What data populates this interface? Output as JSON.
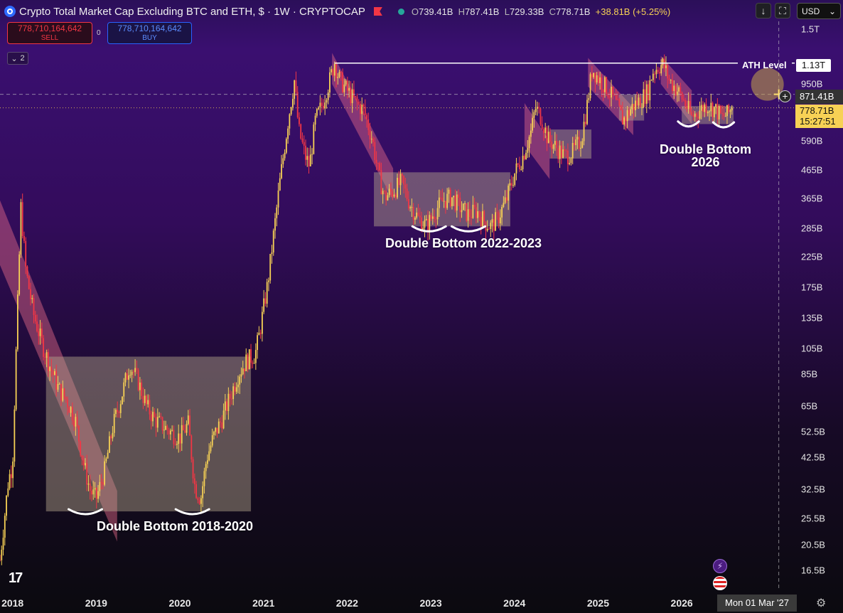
{
  "header": {
    "title": "Crypto Total Market Cap Excluding BTC and ETH, $ · 1W · CRYPTOCAP",
    "open": "739.41B",
    "high": "787.41B",
    "low": "729.33B",
    "close": "778.71B",
    "change": "+38.81B (+5.25%)",
    "open_prefix": "O",
    "high_prefix": "H",
    "low_prefix": "L",
    "close_prefix": "C"
  },
  "trade": {
    "sell_value": "778,710,164,642",
    "sell_label": "SELL",
    "buy_value": "778,710,164,642",
    "buy_label": "BUY",
    "spread": "0"
  },
  "indicators": {
    "collapsed_count": "2"
  },
  "toolbar": {
    "currency": "USD"
  },
  "price_axis": {
    "labels": [
      {
        "text": "1.5T",
        "v": 1500
      },
      {
        "text": "950B",
        "v": 950
      },
      {
        "text": "590B",
        "v": 590
      },
      {
        "text": "465B",
        "v": 465
      },
      {
        "text": "365B",
        "v": 365
      },
      {
        "text": "285B",
        "v": 285
      },
      {
        "text": "225B",
        "v": 225
      },
      {
        "text": "175B",
        "v": 175
      },
      {
        "text": "135B",
        "v": 135
      },
      {
        "text": "105B",
        "v": 105
      },
      {
        "text": "85B",
        "v": 85
      },
      {
        "text": "65B",
        "v": 65
      },
      {
        "text": "52.5B",
        "v": 52.5
      },
      {
        "text": "42.5B",
        "v": 42.5
      },
      {
        "text": "32.5B",
        "v": 32.5
      },
      {
        "text": "25.5B",
        "v": 25.5
      },
      {
        "text": "20.5B",
        "v": 20.5
      },
      {
        "text": "16.5B",
        "v": 16.5
      }
    ],
    "ath_label": "ATH Level",
    "ath_value": "1.13T",
    "crosshair_value": "871.41B",
    "current_value": "778.71B",
    "countdown": "15:27:51"
  },
  "time_axis": {
    "labels": [
      "2018",
      "2019",
      "2020",
      "2021",
      "2022",
      "2023",
      "2024",
      "2025",
      "2026"
    ],
    "crosshair_date": "Mon 01 Mar '27"
  },
  "annotations": {
    "db1": "Double Bottom 2018-2020",
    "db2": "Double Bottom 2022-2023",
    "db3_line1": "Double Bottom",
    "db3_line2": "2026"
  },
  "colors": {
    "up": "#f7d155",
    "down": "#f23645",
    "ath_line": "#ffffff",
    "channel": "#e66a8a",
    "range_box": "#b8a98f"
  },
  "chart_data": {
    "type": "candlestick",
    "title": "Crypto Total Market Cap Excluding BTC and ETH, $ · 1W · CRYPTOCAP",
    "y_scale": "log",
    "ylim": [
      14,
      1600
    ],
    "xlim": [
      2017.85,
      2027.35
    ],
    "ath_level": 1130,
    "crosshair": {
      "x": 2027.16,
      "y": 871.41
    },
    "last_close": 778.71,
    "price_path": [
      [
        2017.85,
        18
      ],
      [
        2017.95,
        35
      ],
      [
        2018.0,
        40
      ],
      [
        2018.05,
        120
      ],
      [
        2018.1,
        340
      ],
      [
        2018.16,
        200
      ],
      [
        2018.25,
        140
      ],
      [
        2018.35,
        110
      ],
      [
        2018.45,
        90
      ],
      [
        2018.55,
        75
      ],
      [
        2018.65,
        68
      ],
      [
        2018.75,
        58
      ],
      [
        2018.85,
        40
      ],
      [
        2018.93,
        32
      ],
      [
        2019.0,
        30
      ],
      [
        2019.1,
        38
      ],
      [
        2019.2,
        55
      ],
      [
        2019.3,
        70
      ],
      [
        2019.4,
        92
      ],
      [
        2019.5,
        80
      ],
      [
        2019.6,
        65
      ],
      [
        2019.7,
        58
      ],
      [
        2019.8,
        55
      ],
      [
        2019.9,
        52
      ],
      [
        2020.0,
        50
      ],
      [
        2020.1,
        56
      ],
      [
        2020.18,
        33
      ],
      [
        2020.25,
        30
      ],
      [
        2020.32,
        42
      ],
      [
        2020.4,
        50
      ],
      [
        2020.5,
        58
      ],
      [
        2020.6,
        70
      ],
      [
        2020.7,
        85
      ],
      [
        2020.8,
        95
      ],
      [
        2020.9,
        100
      ],
      [
        2020.95,
        118
      ],
      [
        2021.05,
        180
      ],
      [
        2021.12,
        270
      ],
      [
        2021.2,
        430
      ],
      [
        2021.3,
        720
      ],
      [
        2021.37,
        980
      ],
      [
        2021.42,
        650
      ],
      [
        2021.5,
        520
      ],
      [
        2021.55,
        480
      ],
      [
        2021.62,
        700
      ],
      [
        2021.7,
        800
      ],
      [
        2021.8,
        1000
      ],
      [
        2021.85,
        1140
      ],
      [
        2021.9,
        1000
      ],
      [
        2022.0,
        900
      ],
      [
        2022.1,
        820
      ],
      [
        2022.2,
        760
      ],
      [
        2022.3,
        600
      ],
      [
        2022.38,
        440
      ],
      [
        2022.45,
        370
      ],
      [
        2022.55,
        390
      ],
      [
        2022.65,
        420
      ],
      [
        2022.75,
        350
      ],
      [
        2022.85,
        310
      ],
      [
        2022.95,
        290
      ],
      [
        2023.05,
        330
      ],
      [
        2023.15,
        360
      ],
      [
        2023.25,
        370
      ],
      [
        2023.35,
        340
      ],
      [
        2023.45,
        320
      ],
      [
        2023.55,
        330
      ],
      [
        2023.65,
        300
      ],
      [
        2023.72,
        290
      ],
      [
        2023.8,
        310
      ],
      [
        2023.9,
        360
      ],
      [
        2024.0,
        450
      ],
      [
        2024.1,
        520
      ],
      [
        2024.2,
        640
      ],
      [
        2024.25,
        780
      ],
      [
        2024.32,
        720
      ],
      [
        2024.4,
        600
      ],
      [
        2024.5,
        560
      ],
      [
        2024.6,
        520
      ],
      [
        2024.7,
        540
      ],
      [
        2024.8,
        600
      ],
      [
        2024.87,
        800
      ],
      [
        2024.93,
        1080
      ],
      [
        2025.0,
        1000
      ],
      [
        2025.1,
        920
      ],
      [
        2025.2,
        820
      ],
      [
        2025.3,
        700
      ],
      [
        2025.4,
        780
      ],
      [
        2025.5,
        830
      ],
      [
        2025.6,
        900
      ],
      [
        2025.65,
        1050
      ],
      [
        2025.72,
        1100
      ],
      [
        2025.78,
        1120
      ],
      [
        2025.85,
        980
      ],
      [
        2025.95,
        900
      ],
      [
        2026.05,
        800
      ],
      [
        2026.12,
        720
      ],
      [
        2026.2,
        760
      ],
      [
        2026.3,
        800
      ],
      [
        2026.4,
        770
      ],
      [
        2026.48,
        720
      ],
      [
        2026.55,
        740
      ],
      [
        2026.6,
        779
      ]
    ],
    "channels": [
      {
        "x1": 2017.85,
        "x2": 2019.25,
        "top_start": 360,
        "top_end": 32,
        "bottom_start": 210,
        "bottom_end": 21
      },
      {
        "x1": 2021.82,
        "x2": 2022.55,
        "top_start": 1230,
        "top_end": 470,
        "bottom_start": 950,
        "bottom_end": 360
      },
      {
        "x1": 2024.12,
        "x2": 2024.42,
        "top_start": 810,
        "top_end": 590,
        "bottom_start": 570,
        "bottom_end": 430
      },
      {
        "x1": 2024.88,
        "x2": 2025.42,
        "top_start": 1180,
        "top_end": 780,
        "bottom_start": 930,
        "bottom_end": 620
      },
      {
        "x1": 2025.75,
        "x2": 2026.12,
        "top_start": 1200,
        "top_end": 900,
        "bottom_start": 950,
        "bottom_end": 680
      }
    ],
    "range_boxes": [
      {
        "x1": 2018.4,
        "x2": 2020.85,
        "ytop": 98,
        "ybottom": 27
      },
      {
        "x1": 2022.32,
        "x2": 2023.95,
        "ytop": 455,
        "ybottom": 290
      },
      {
        "x1": 2024.42,
        "x2": 2024.92,
        "ytop": 650,
        "ybottom": 510
      },
      {
        "x1": 2025.25,
        "x2": 2025.55,
        "ytop": 870,
        "ybottom": 700
      },
      {
        "x1": 2026.0,
        "x2": 2026.62,
        "ytop": 790,
        "ybottom": 680
      }
    ],
    "bottom_arcs": [
      {
        "x": 2018.87,
        "y": 27.5,
        "w": 0.4
      },
      {
        "x": 2020.15,
        "y": 27.5,
        "w": 0.4
      },
      {
        "x": 2022.98,
        "y": 290,
        "w": 0.4
      },
      {
        "x": 2023.45,
        "y": 290,
        "w": 0.4
      },
      {
        "x": 2026.08,
        "y": 695,
        "w": 0.25
      },
      {
        "x": 2026.5,
        "y": 690,
        "w": 0.25
      }
    ]
  }
}
